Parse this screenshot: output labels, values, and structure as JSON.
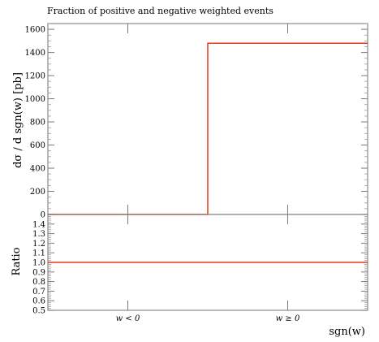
{
  "chart_data": [
    {
      "type": "line",
      "title": "Fraction of positive and negative weighted events",
      "ylabel": "dσ / d sgn(w) [pb]",
      "xlabel": "sgn(w)",
      "categories": [
        "w < 0",
        "w ≥ 0"
      ],
      "ylim": [
        0,
        1650
      ],
      "yticks": [
        "0",
        "200",
        "400",
        "600",
        "800",
        "1000",
        "1200",
        "1400",
        "1600"
      ],
      "series": [
        {
          "values": [
            0,
            1480
          ],
          "color": "#e8391a"
        }
      ],
      "style": "step histogram",
      "grid": false,
      "legend": "none"
    },
    {
      "type": "line",
      "ylabel": "Ratio",
      "xlabel": "sgn(w)",
      "categories": [
        "w < 0",
        "w ≥ 0"
      ],
      "ylim": [
        0.5,
        1.5
      ],
      "yticks": [
        "0.5",
        "0.6",
        "0.7",
        "0.8",
        "0.9",
        "1.0",
        "1.1",
        "1.2",
        "1.3",
        "1.4"
      ],
      "series": [
        {
          "values": [
            1.0,
            1.0
          ],
          "color": "#e8391a"
        }
      ],
      "style": "ratio panel",
      "grid": false,
      "legend": "none"
    }
  ]
}
